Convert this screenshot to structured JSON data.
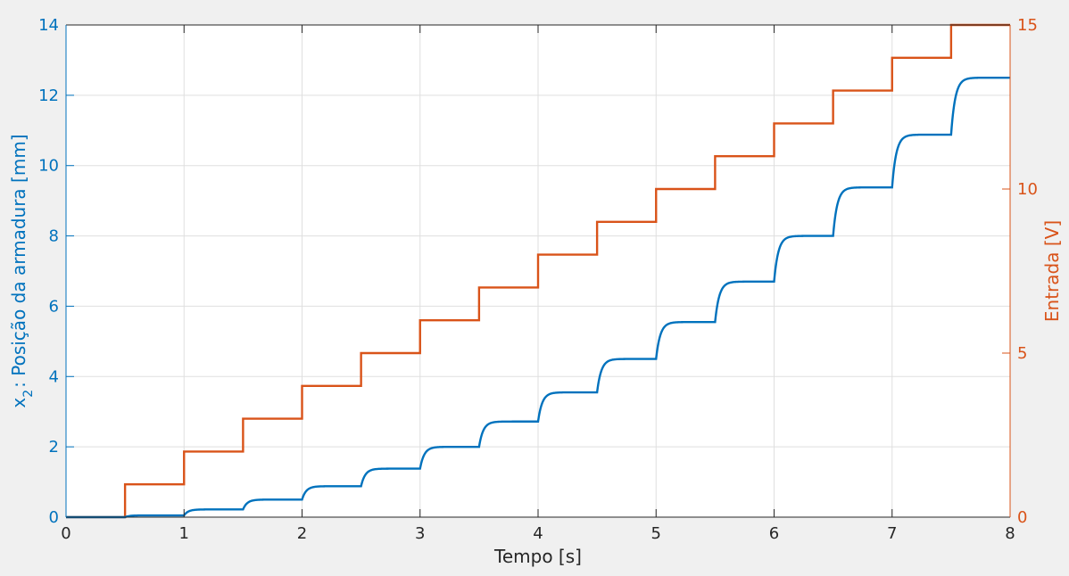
{
  "chart_data": {
    "type": "line",
    "xlabel": "Tempo [s]",
    "ylabel_left": {
      "main": "x",
      "sub": "2",
      "rest": ": Posição da armadura [mm]"
    },
    "ylabel_right": "Entrada [V]",
    "xlim": [
      0,
      8
    ],
    "ylim_left": [
      0,
      14
    ],
    "ylim_right": [
      0,
      15
    ],
    "xticks": [
      "0",
      "1",
      "2",
      "3",
      "4",
      "5",
      "6",
      "7",
      "8"
    ],
    "yticks_left": [
      "0",
      "2",
      "4",
      "6",
      "8",
      "10",
      "12",
      "14"
    ],
    "yticks_right": [
      "0",
      "5",
      "10",
      "15"
    ],
    "grid": true,
    "colors": {
      "left": "#0072BD",
      "right": "#D95319",
      "axis": "#262626",
      "grid": "#dfdfdf",
      "plot_bg": "#ffffff"
    },
    "series": [
      {
        "axis": "right",
        "kind": "step",
        "step_times": [
          0,
          0.5,
          1,
          1.5,
          2,
          2.5,
          3,
          3.5,
          4,
          4.5,
          5,
          5.5,
          6,
          6.5,
          7,
          7.5
        ],
        "levels": [
          0,
          1,
          2,
          3,
          4,
          5,
          6,
          7,
          8,
          9,
          10,
          11,
          12,
          13,
          14,
          15
        ],
        "x_end": 8
      },
      {
        "axis": "left",
        "kind": "settling-step",
        "step_times": [
          0,
          0.5,
          1,
          1.5,
          2,
          2.5,
          3,
          3.5,
          4,
          4.5,
          5,
          5.5,
          6,
          6.5,
          7,
          7.5
        ],
        "levels": [
          0,
          0.05,
          0.22,
          0.5,
          0.88,
          1.38,
          2.0,
          2.72,
          3.55,
          4.5,
          5.55,
          6.7,
          8.0,
          9.38,
          10.88,
          12.5
        ],
        "x_end": 8
      }
    ]
  }
}
